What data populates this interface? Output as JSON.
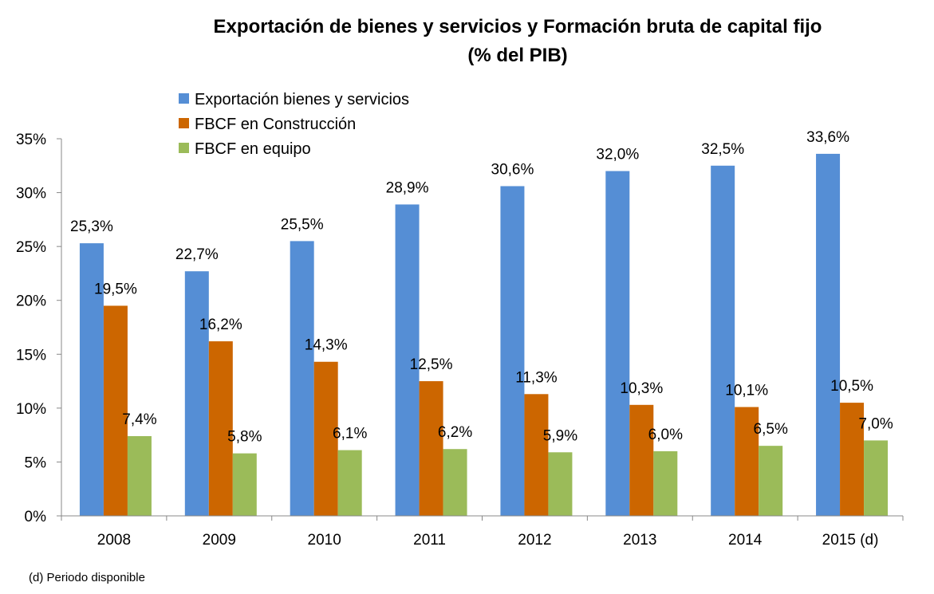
{
  "chart_data": {
    "type": "bar",
    "title": "Exportación de bienes y servicios y Formación bruta de capital fijo",
    "subtitle": "(% del PIB)",
    "categories": [
      "2008",
      "2009",
      "2010",
      "2011",
      "2012",
      "2013",
      "2014",
      "2015 (d)"
    ],
    "series": [
      {
        "name": "Exportación bienes y servicios",
        "color": "#558ED5",
        "values": [
          25.3,
          22.7,
          25.5,
          28.9,
          30.6,
          32.0,
          32.5,
          33.6
        ],
        "labels": [
          "25,3%",
          "22,7%",
          "25,5%",
          "28,9%",
          "30,6%",
          "32,0%",
          "32,5%",
          "33,6%"
        ]
      },
      {
        "name": "FBCF en Construcción",
        "color": "#CC6600",
        "values": [
          19.5,
          16.2,
          14.3,
          12.5,
          11.3,
          10.3,
          10.1,
          10.5
        ],
        "labels": [
          "19,5%",
          "16,2%",
          "14,3%",
          "12,5%",
          "11,3%",
          "10,3%",
          "10,1%",
          "10,5%"
        ]
      },
      {
        "name": "FBCF en equipo",
        "color": "#9BBB59",
        "values": [
          7.4,
          5.8,
          6.1,
          6.2,
          5.9,
          6.0,
          6.5,
          7.0
        ],
        "labels": [
          "7,4%",
          "5,8%",
          "6,1%",
          "6,2%",
          "5,9%",
          "6,0%",
          "6,5%",
          "7,0%"
        ]
      }
    ],
    "ylim": [
      0,
      35
    ],
    "yticks": [
      0,
      5,
      10,
      15,
      20,
      25,
      30,
      35
    ],
    "ytick_labels": [
      "0%",
      "5%",
      "10%",
      "15%",
      "20%",
      "25%",
      "30%",
      "35%"
    ],
    "xlabel": "",
    "ylabel": "",
    "legend_position": "top-left",
    "grid": false
  },
  "footnote": "(d) Periodo disponible"
}
